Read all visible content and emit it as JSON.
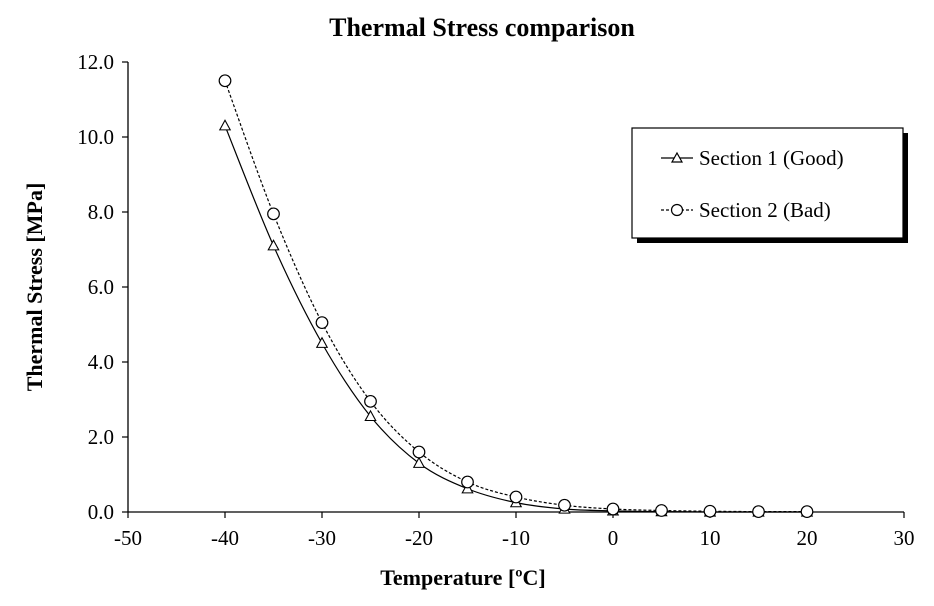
{
  "chart_data": {
    "type": "scatter",
    "title": "Thermal Stress comparison",
    "xlabel": "Temperature [ºC]",
    "ylabel": "Thermal Stress [MPa]",
    "xlim": [
      -50,
      30
    ],
    "ylim": [
      0,
      12
    ],
    "x_ticks": [
      -50,
      -40,
      -30,
      -20,
      -10,
      0,
      10,
      20,
      30
    ],
    "y_ticks": [
      0,
      2,
      4,
      6,
      8,
      10,
      12
    ],
    "x_tick_labels": [
      "-50",
      "-40",
      "-30",
      "-20",
      "-10",
      "0",
      "10",
      "20",
      "30"
    ],
    "y_tick_labels": [
      "0.0",
      "2.0",
      "4.0",
      "6.0",
      "8.0",
      "10.0",
      "12.0"
    ],
    "grid": false,
    "legend_position": "top-right",
    "smooth_lines": true,
    "series": [
      {
        "name": "Section 1 (Good)",
        "marker": "triangle",
        "line_style": "solid",
        "color": "#000000",
        "x": [
          -40,
          -35,
          -30,
          -25,
          -20,
          -15,
          -10,
          -5,
          0,
          5,
          10,
          15,
          20
        ],
        "y": [
          10.3,
          7.1,
          4.5,
          2.55,
          1.3,
          0.62,
          0.25,
          0.08,
          0.03,
          0.01,
          0.0,
          0.0,
          0.0
        ]
      },
      {
        "name": "Section 2 (Bad)",
        "marker": "circle",
        "line_style": "dashed",
        "color": "#000000",
        "x": [
          -40,
          -35,
          -30,
          -25,
          -20,
          -15,
          -10,
          -5,
          0,
          5,
          10,
          15,
          20
        ],
        "y": [
          11.5,
          7.95,
          5.05,
          2.95,
          1.6,
          0.8,
          0.4,
          0.18,
          0.08,
          0.04,
          0.02,
          0.01,
          0.01
        ]
      }
    ]
  }
}
